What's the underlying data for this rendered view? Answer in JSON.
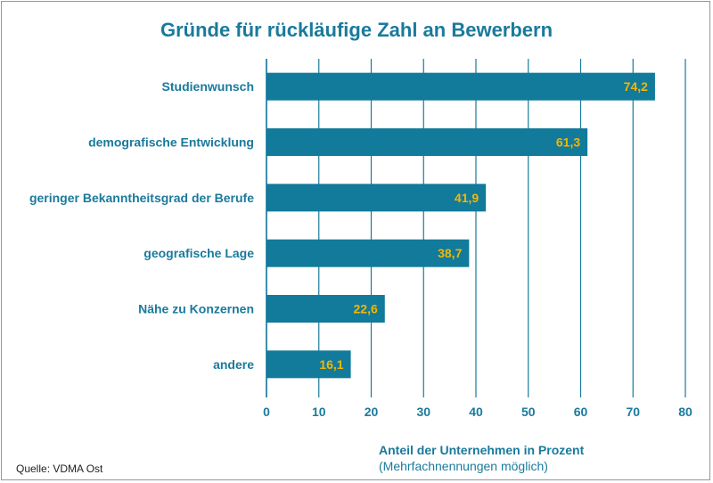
{
  "chart_data": {
    "type": "bar",
    "orientation": "horizontal",
    "title": "Gründe für rückläufige Zahl an Bewerbern",
    "categories": [
      "Studienwunsch",
      "demografische Entwicklung",
      "geringer Bekanntheitsgrad der Berufe",
      "geografische Lage",
      "Nähe zu Konzernen",
      "andere"
    ],
    "values": [
      74.2,
      61.3,
      41.9,
      38.7,
      22.6,
      16.1
    ],
    "value_labels": [
      "74,2",
      "61,3",
      "41,9",
      "38,7",
      "22,6",
      "16,1"
    ],
    "xlim": [
      0,
      80
    ],
    "xticks": [
      0,
      10,
      20,
      30,
      40,
      50,
      60,
      70,
      80
    ],
    "xlabel": "Anteil der Unternehmen in Prozent",
    "xlabel_note": "(Mehrfachnennungen möglich)",
    "ylabel": "",
    "grid": "vertical",
    "source": "Quelle: VDMA Ost",
    "colors": {
      "bar": "#127a9a",
      "value_label": "#f2b705",
      "text": "#1a7a9c",
      "grid": "#1a7a9c"
    }
  }
}
